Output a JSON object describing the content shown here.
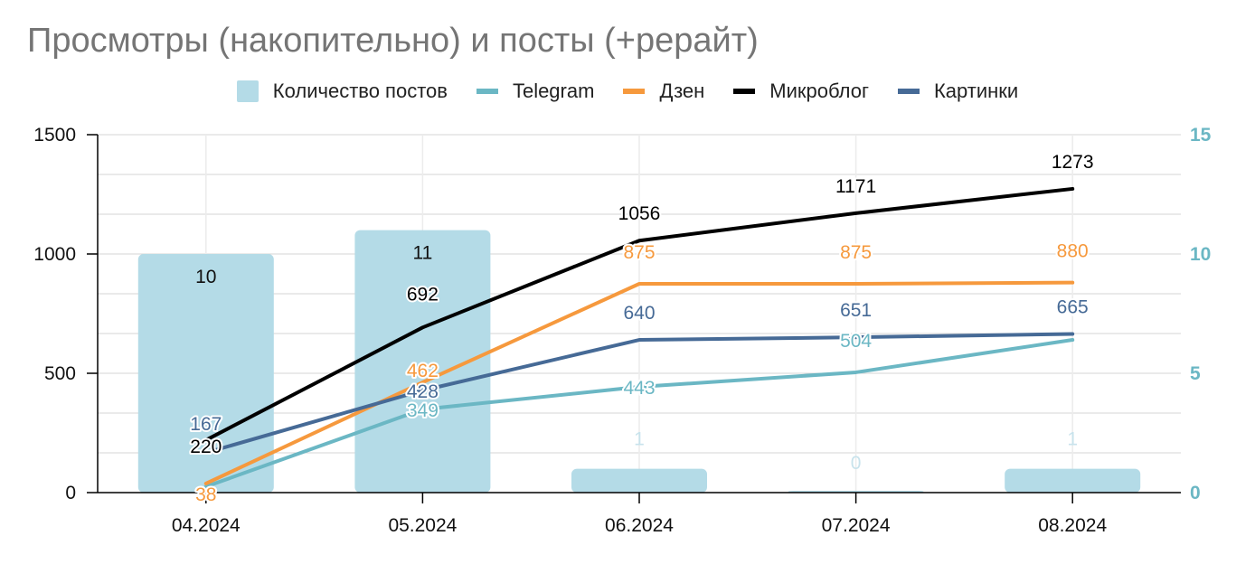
{
  "chart_data": {
    "type": "bar",
    "title": "Просмотры (накопительно) и посты (+рерайт)",
    "categories": [
      "04.2024",
      "05.2024",
      "06.2024",
      "07.2024",
      "08.2024"
    ],
    "ylim_left": [
      0,
      1500
    ],
    "yticks_left": [
      "0",
      "500",
      "1000",
      "1500"
    ],
    "ylim_right": [
      0,
      15
    ],
    "yticks_right": [
      "0",
      "5",
      "10",
      "15"
    ],
    "grid": true,
    "legend_position": "top",
    "bars": {
      "name": "Количество постов",
      "axis": "right",
      "color": "#b4dbe7",
      "values": [
        10,
        11,
        1,
        0,
        1
      ],
      "labels": [
        "10",
        "11",
        "1",
        "0",
        "1"
      ]
    },
    "series": [
      {
        "name": "Telegram",
        "color": "#6bb7c4",
        "axis": "left",
        "values": [
          25,
          349,
          443,
          504,
          640
        ],
        "labels": [
          "",
          "349",
          "443",
          "504",
          "640"
        ]
      },
      {
        "name": "Дзен",
        "color": "#f6993d",
        "axis": "left",
        "values": [
          38,
          462,
          875,
          875,
          880
        ],
        "labels": [
          "38",
          "462",
          "875",
          "875",
          "880"
        ]
      },
      {
        "name": "Микроблог",
        "color": "#000000",
        "axis": "left",
        "values": [
          220,
          692,
          1056,
          1171,
          1273
        ],
        "labels": [
          "220",
          "692",
          "1056",
          "1171",
          "1273"
        ]
      },
      {
        "name": "Картинки",
        "color": "#466a96",
        "axis": "left",
        "values": [
          167,
          428,
          640,
          651,
          665
        ],
        "labels": [
          "167",
          "428",
          "640",
          "651",
          "665"
        ]
      }
    ],
    "colors": {
      "right_axis": "#6bb7c4",
      "grid": "#d6d6d6",
      "axis": "#000000"
    }
  }
}
